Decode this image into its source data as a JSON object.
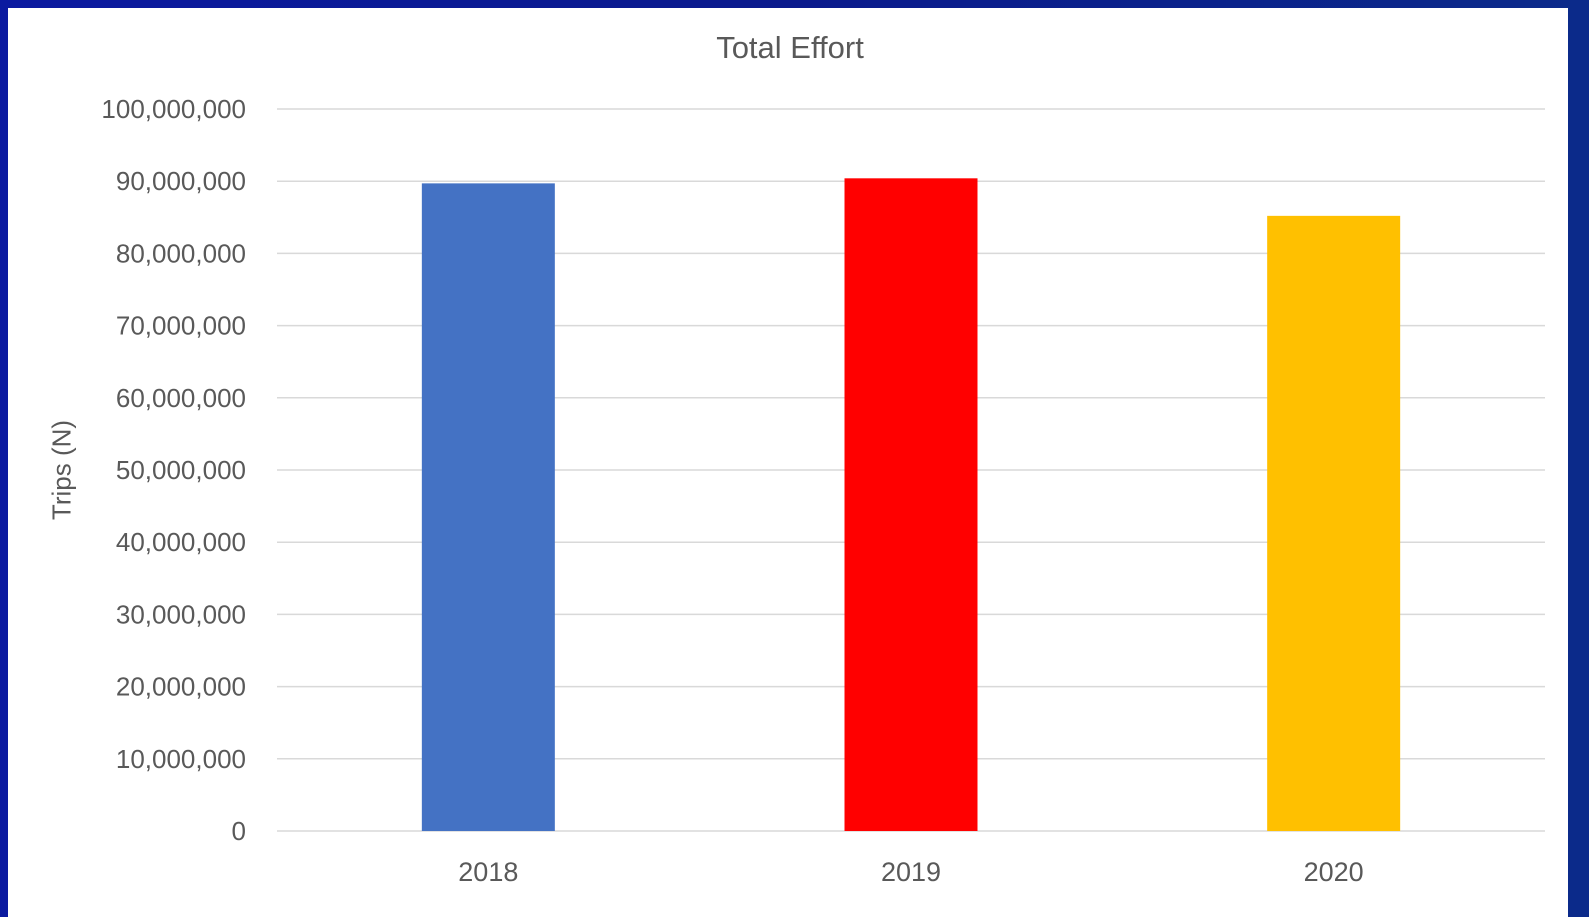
{
  "chart_data": {
    "type": "bar",
    "title": "Total Effort",
    "xlabel": "",
    "ylabel": "Trips (N)",
    "categories": [
      "2018",
      "2019",
      "2020"
    ],
    "values": [
      89700000,
      90400000,
      85200000
    ],
    "colors": [
      "#4472C4",
      "#FF0000",
      "#FFC000"
    ],
    "ylim": [
      0,
      100000000
    ],
    "yticks": [
      0,
      10000000,
      20000000,
      30000000,
      40000000,
      50000000,
      60000000,
      70000000,
      80000000,
      90000000,
      100000000
    ],
    "ytick_labels": [
      "0",
      "10,000,000",
      "20,000,000",
      "30,000,000",
      "40,000,000",
      "50,000,000",
      "60,000,000",
      "70,000,000",
      "80,000,000",
      "90,000,000",
      "100,000,000"
    ],
    "grid": true,
    "legend": "none"
  },
  "colors": {
    "frame": "#0a1a8c",
    "gridline": "#d9d9d9",
    "text": "#595959"
  }
}
